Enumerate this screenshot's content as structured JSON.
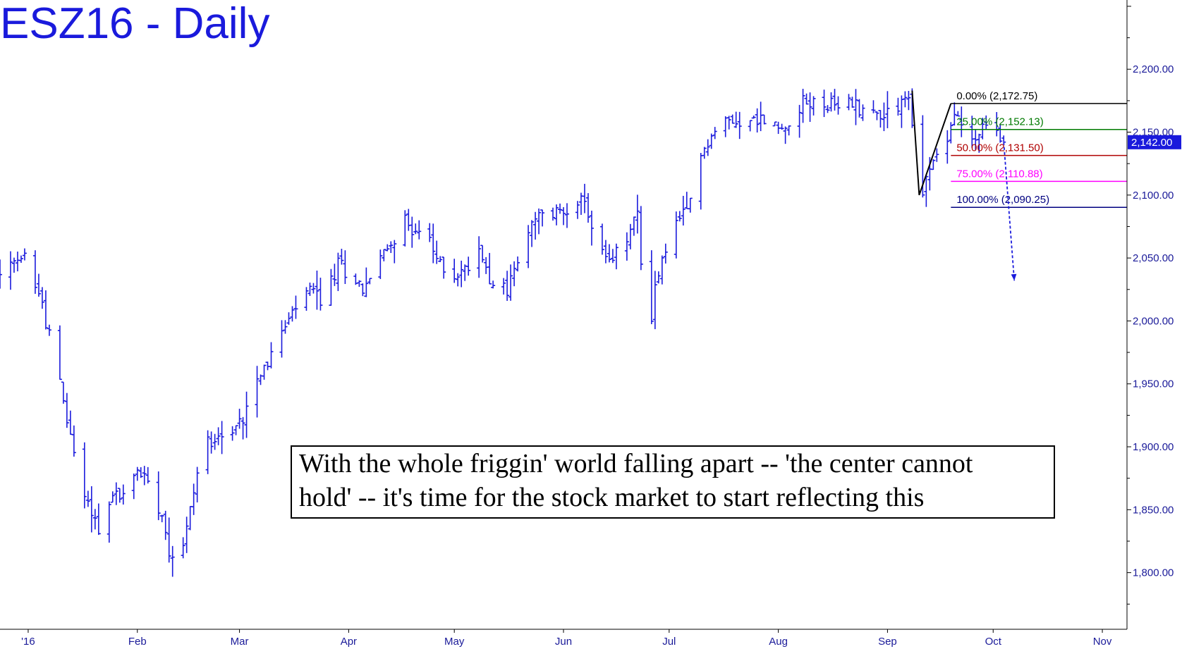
{
  "title": "ESZ16 - Daily",
  "annotation": {
    "line1": "With the whole friggin' world falling apart -- 'the center cannot",
    "line2": "hold' -- it's time for the stock market to start reflecting this"
  },
  "colors": {
    "price": "#1a1adc",
    "fib_0": "#000000",
    "fib_25": "#007a00",
    "fib_50": "#b00000",
    "fib_75": "#ff00ff",
    "fib_100": "#000080",
    "last_price_bg": "#1a1adc",
    "axis": "#000000"
  },
  "chart_data": {
    "type": "ohlc",
    "title": "ESZ16 - Daily",
    "ylim": [
      1755,
      2255
    ],
    "y_ticks": [
      {
        "value": 1800,
        "label": "1,800.00"
      },
      {
        "value": 1850,
        "label": "1,850.00"
      },
      {
        "value": 1900,
        "label": "1,900.00"
      },
      {
        "value": 1950,
        "label": "1,950.00"
      },
      {
        "value": 2000,
        "label": "2,000.00"
      },
      {
        "value": 2050,
        "label": "2,050.00"
      },
      {
        "value": 2100,
        "label": "2,100.00"
      },
      {
        "value": 2150,
        "label": "2,150.00"
      },
      {
        "value": 2200,
        "label": "2,200.00"
      }
    ],
    "x_labels": [
      {
        "label": "'16",
        "day": 2
      },
      {
        "label": "Feb",
        "day": 33
      },
      {
        "label": "Mar",
        "day": 62
      },
      {
        "label": "Apr",
        "day": 93
      },
      {
        "label": "May",
        "day": 123
      },
      {
        "label": "Jun",
        "day": 154
      },
      {
        "label": "Jul",
        "day": 184
      },
      {
        "label": "Aug",
        "day": 215
      },
      {
        "label": "Sep",
        "day": 246
      },
      {
        "label": "Oct",
        "day": 276
      },
      {
        "label": "Nov",
        "day": 307
      }
    ],
    "x_range_days": [
      -6,
      314
    ],
    "last_price": {
      "value": 2142.0,
      "label": "2,142.00"
    },
    "fib_levels": [
      {
        "label": "0.00% (2,172.75)",
        "value": 2172.75,
        "color": "#000000"
      },
      {
        "label": "25.00% (2,152.13)",
        "value": 2152.13,
        "color": "#007a00"
      },
      {
        "label": "50.00% (2,131.50)",
        "value": 2131.5,
        "color": "#b00000"
      },
      {
        "label": "75.00% (2,110.88)",
        "value": 2110.88,
        "color": "#ff00ff"
      },
      {
        "label": "100.00% (2,090.25)",
        "value": 2090.25,
        "color": "#000080"
      }
    ],
    "pattern_line": [
      {
        "day": 253,
        "value": 2183
      },
      {
        "day": 255,
        "value": 2100
      },
      {
        "day": 264,
        "value": 2172.75
      }
    ],
    "projection_arrow": {
      "from": {
        "day": 279,
        "value": 2142
      },
      "to": {
        "day": 282,
        "value": 2032
      }
    },
    "anchors": [
      {
        "day": -6,
        "value": 2035
      },
      {
        "day": 2,
        "value": 2052
      },
      {
        "day": 5,
        "value": 2022
      },
      {
        "day": 8,
        "value": 1990
      },
      {
        "day": 12,
        "value": 1935
      },
      {
        "day": 16,
        "value": 1882
      },
      {
        "day": 19,
        "value": 1855
      },
      {
        "day": 23,
        "value": 1830
      },
      {
        "day": 26,
        "value": 1862
      },
      {
        "day": 30,
        "value": 1860
      },
      {
        "day": 33,
        "value": 1882
      },
      {
        "day": 37,
        "value": 1870
      },
      {
        "day": 40,
        "value": 1848
      },
      {
        "day": 42,
        "value": 1820
      },
      {
        "day": 45,
        "value": 1810
      },
      {
        "day": 48,
        "value": 1850
      },
      {
        "day": 51,
        "value": 1895
      },
      {
        "day": 55,
        "value": 1912
      },
      {
        "day": 59,
        "value": 1905
      },
      {
        "day": 63,
        "value": 1925
      },
      {
        "day": 66,
        "value": 1955
      },
      {
        "day": 70,
        "value": 1968
      },
      {
        "day": 74,
        "value": 1990
      },
      {
        "day": 78,
        "value": 2010
      },
      {
        "day": 82,
        "value": 2025
      },
      {
        "day": 86,
        "value": 2015
      },
      {
        "day": 90,
        "value": 2045
      },
      {
        "day": 94,
        "value": 2038
      },
      {
        "day": 97,
        "value": 2025
      },
      {
        "day": 100,
        "value": 2040
      },
      {
        "day": 104,
        "value": 2058
      },
      {
        "day": 108,
        "value": 2078
      },
      {
        "day": 111,
        "value": 2075
      },
      {
        "day": 115,
        "value": 2068
      },
      {
        "day": 118,
        "value": 2048
      },
      {
        "day": 122,
        "value": 2035
      },
      {
        "day": 126,
        "value": 2040
      },
      {
        "day": 130,
        "value": 2058
      },
      {
        "day": 134,
        "value": 2030
      },
      {
        "day": 138,
        "value": 2025
      },
      {
        "day": 142,
        "value": 2055
      },
      {
        "day": 146,
        "value": 2080
      },
      {
        "day": 150,
        "value": 2085
      },
      {
        "day": 154,
        "value": 2088
      },
      {
        "day": 158,
        "value": 2098
      },
      {
        "day": 161,
        "value": 2085
      },
      {
        "day": 164,
        "value": 2058
      },
      {
        "day": 167,
        "value": 2045
      },
      {
        "day": 171,
        "value": 2060
      },
      {
        "day": 175,
        "value": 2085
      },
      {
        "day": 177,
        "value": 2010
      },
      {
        "day": 178,
        "value": 1980
      },
      {
        "day": 180,
        "value": 2028
      },
      {
        "day": 182,
        "value": 2048
      },
      {
        "day": 185,
        "value": 2075
      },
      {
        "day": 189,
        "value": 2085
      },
      {
        "day": 191,
        "value": 2110
      },
      {
        "day": 194,
        "value": 2138
      },
      {
        "day": 198,
        "value": 2155
      },
      {
        "day": 202,
        "value": 2160
      },
      {
        "day": 206,
        "value": 2158
      },
      {
        "day": 210,
        "value": 2160
      },
      {
        "day": 213,
        "value": 2158
      },
      {
        "day": 216,
        "value": 2150
      },
      {
        "day": 219,
        "value": 2168
      },
      {
        "day": 223,
        "value": 2173
      },
      {
        "day": 227,
        "value": 2175
      },
      {
        "day": 231,
        "value": 2168
      },
      {
        "day": 235,
        "value": 2175
      },
      {
        "day": 238,
        "value": 2170
      },
      {
        "day": 242,
        "value": 2165
      },
      {
        "day": 245,
        "value": 2165
      },
      {
        "day": 248,
        "value": 2172
      },
      {
        "day": 252,
        "value": 2178
      },
      {
        "day": 254,
        "value": 2125
      },
      {
        "day": 256,
        "value": 2105
      },
      {
        "day": 258,
        "value": 2120
      },
      {
        "day": 260,
        "value": 2135
      },
      {
        "day": 262,
        "value": 2132
      },
      {
        "day": 265,
        "value": 2165
      },
      {
        "day": 268,
        "value": 2150
      },
      {
        "day": 271,
        "value": 2145
      },
      {
        "day": 274,
        "value": 2155
      },
      {
        "day": 277,
        "value": 2150
      },
      {
        "day": 279,
        "value": 2142
      }
    ]
  }
}
